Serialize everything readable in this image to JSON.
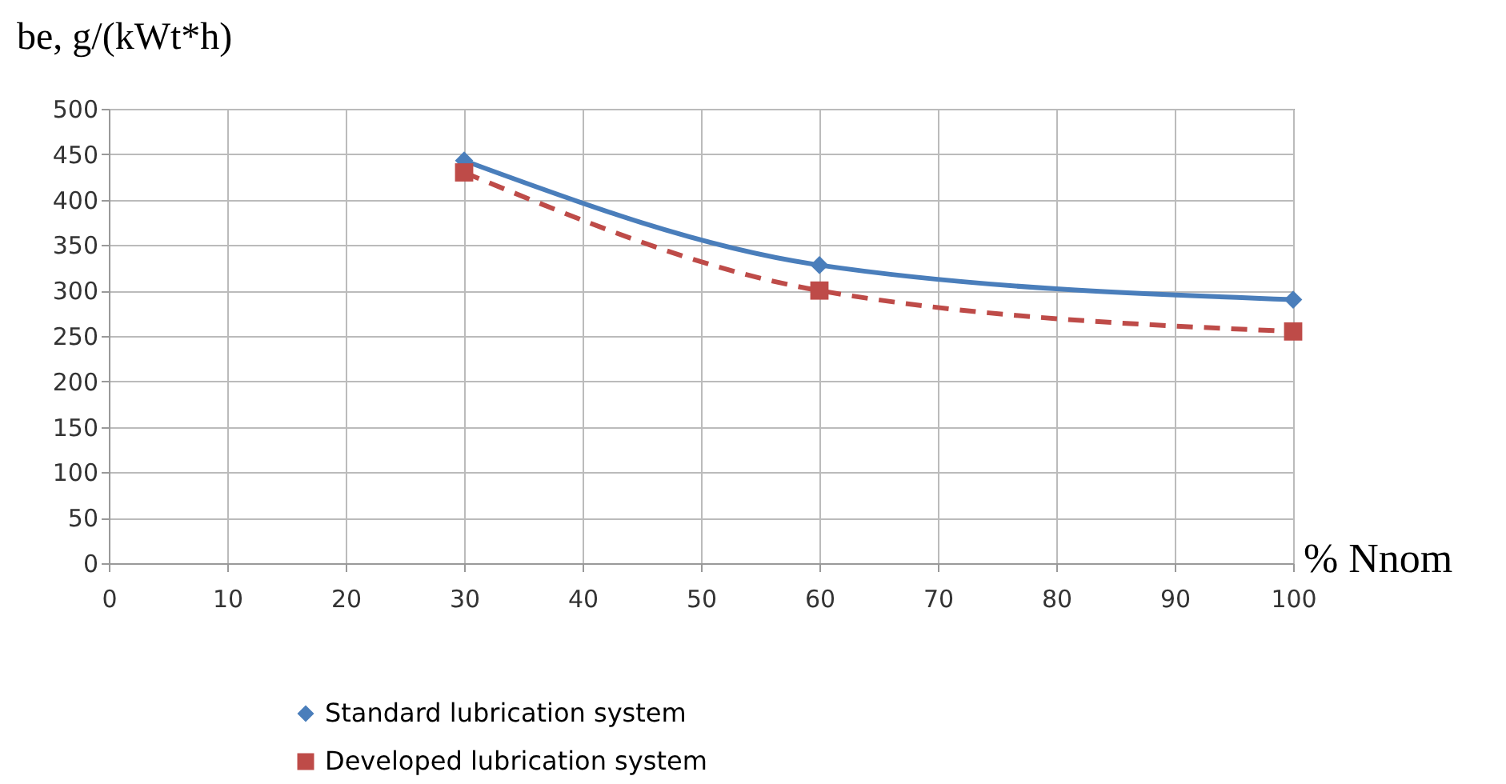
{
  "chart_data": {
    "type": "line",
    "xlabel": "% Nnom",
    "ylabel": "be, g/(kWt*h)",
    "xlim": [
      0,
      100
    ],
    "xticks": [
      0,
      10,
      20,
      30,
      40,
      50,
      60,
      70,
      80,
      90,
      100
    ],
    "ylim": [
      0,
      500
    ],
    "yticks": [
      0,
      50,
      100,
      150,
      200,
      250,
      300,
      350,
      400,
      450,
      500
    ],
    "grid": true,
    "legend": "bottom",
    "series": [
      {
        "name": "Standard lubrication system",
        "color": "#4a7ebb",
        "x": [
          30,
          60,
          100
        ],
        "values": [
          443,
          328,
          290
        ],
        "marker": "diamond",
        "line_style": "solid"
      },
      {
        "name": "Developed lubrication system",
        "color": "#be4b48",
        "x": [
          30,
          60,
          100
        ],
        "values": [
          430,
          300,
          255
        ],
        "marker": "square",
        "line_style": "dashed"
      }
    ]
  }
}
